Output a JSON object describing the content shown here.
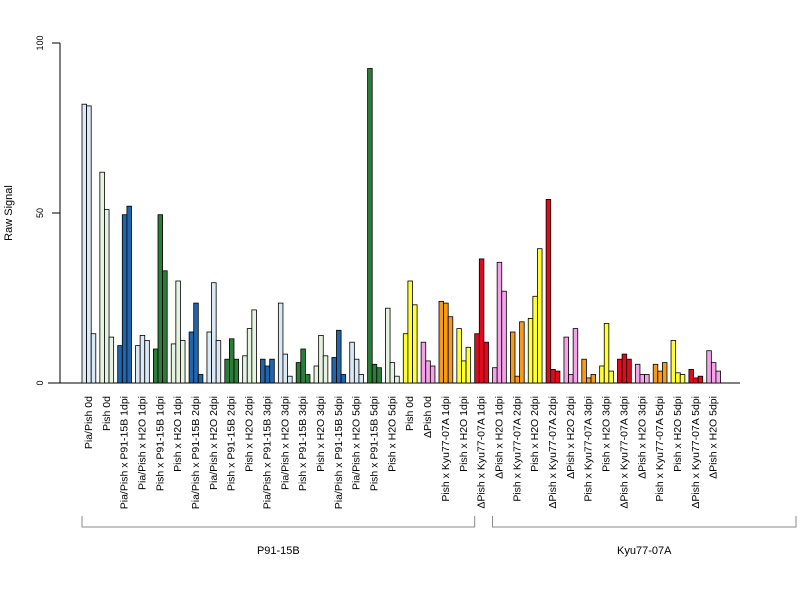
{
  "chart_data": {
    "type": "bar",
    "ylabel": "Raw Signal",
    "ylim": [
      0,
      100
    ],
    "yticks": [
      0,
      50,
      100
    ],
    "groups": [
      {
        "label": "P91-15B",
        "first": 0,
        "last": 22
      },
      {
        "label": "Kyu77-07A",
        "first": 23,
        "last": 40
      }
    ],
    "categories": [
      {
        "label": "Pia/Pish 0d",
        "color": "#dbe8f6",
        "values": [
          82,
          81.5,
          14.5
        ]
      },
      {
        "label": "Pish 0d",
        "color": "#e5f4e0",
        "values": [
          62,
          51,
          13.5
        ]
      },
      {
        "label": "Pia/Pish x P91-15B 1dpi",
        "color": "#2166ac",
        "values": [
          11,
          49.5,
          52
        ]
      },
      {
        "label": "Pia/Pish x H2O 1dpi",
        "color": "#dbe8f6",
        "values": [
          11,
          14,
          12.5
        ]
      },
      {
        "label": "Pish x P91-15B 1dpi",
        "color": "#2d7d3a",
        "values": [
          10,
          49.5,
          33
        ]
      },
      {
        "label": "Pish x H2O 1dpi",
        "color": "#e5f4e0",
        "values": [
          11.5,
          30,
          12.5
        ]
      },
      {
        "label": "Pia/Pish x P91-15B 2dpi",
        "color": "#2166ac",
        "values": [
          15,
          23.5,
          2.5
        ]
      },
      {
        "label": "Pia/Pish x H2O 2dpi",
        "color": "#dbe8f6",
        "values": [
          15,
          29.5,
          12.5
        ]
      },
      {
        "label": "Pish x P91-15B 2dpi",
        "color": "#2d7d3a",
        "values": [
          7,
          13,
          7
        ]
      },
      {
        "label": "Pish x H2O 2dpi",
        "color": "#e5f4e0",
        "values": [
          8,
          16,
          21.5
        ]
      },
      {
        "label": "Pia/Pish x P91-15B 3dpi",
        "color": "#2166ac",
        "values": [
          7,
          5,
          7
        ]
      },
      {
        "label": "Pia/Pish x H2O 3dpi",
        "color": "#dbe8f6",
        "values": [
          23.5,
          8.5,
          2
        ]
      },
      {
        "label": "Pish x P91-15B 3dpi",
        "color": "#2d7d3a",
        "values": [
          6,
          10,
          2.5
        ]
      },
      {
        "label": "Pish x H2O 3dpi",
        "color": "#e5f4e0",
        "values": [
          5,
          14,
          8
        ]
      },
      {
        "label": "Pia/Pish x P91-15B 5dpi",
        "color": "#2166ac",
        "values": [
          7.5,
          15.5,
          2.5
        ]
      },
      {
        "label": "Pia/Pish x H2O 5dpi",
        "color": "#dbe8f6",
        "values": [
          12,
          7,
          2.5
        ]
      },
      {
        "label": "Pish x P91-15B 5dpi",
        "color": "#2d7d3a",
        "values": [
          92.5,
          5.5,
          4.5
        ]
      },
      {
        "label": "Pish x H2O 5dpi",
        "color": "#e5f4e0",
        "values": [
          22,
          6,
          2
        ]
      },
      {
        "label": "Pish 0d",
        "color": "#ffff33",
        "values": [
          14.5,
          30,
          23
        ]
      },
      {
        "label": "ΔPish 0d",
        "color": "#f5a3e8",
        "values": [
          12,
          6.5,
          5
        ]
      },
      {
        "label": "Pish x Kyu77-07A 1dpi",
        "color": "#f39a1f",
        "values": [
          24,
          23.5,
          19.5
        ]
      },
      {
        "label": "Pish x H2O 1dpi",
        "color": "#ffff33",
        "values": [
          16,
          6.5,
          10.5
        ]
      },
      {
        "label": "ΔPish x Kyu77-07A 1dpi",
        "color": "#e00a1f",
        "values": [
          14.5,
          36.5,
          12
        ]
      },
      {
        "label": "ΔPish x H2O 1dpi",
        "color": "#f5a3e8",
        "values": [
          4.5,
          35.5,
          27
        ]
      },
      {
        "label": "Pish x Kyu77-07A 2dpi",
        "color": "#f39a1f",
        "values": [
          15,
          2,
          18
        ]
      },
      {
        "label": "Pish x H2O 2dpi",
        "color": "#ffff33",
        "values": [
          19,
          25.5,
          39.5
        ]
      },
      {
        "label": "ΔPish x Kyu77-07A 2dpi",
        "color": "#e00a1f",
        "values": [
          54,
          4,
          3.5
        ]
      },
      {
        "label": "ΔPish x H2O 2dpi",
        "color": "#f5a3e8",
        "values": [
          13.5,
          2.5,
          16
        ]
      },
      {
        "label": "Pish x Kyu77-07A 3dpi",
        "color": "#f39a1f",
        "values": [
          7,
          1.5,
          2.5
        ]
      },
      {
        "label": "Pish x H2O 3dpi",
        "color": "#ffff33",
        "values": [
          5,
          17.5,
          3.5
        ]
      },
      {
        "label": "ΔPish x Kyu77-07A 3dpi",
        "color": "#e00a1f",
        "values": [
          7,
          8.5,
          7
        ]
      },
      {
        "label": "ΔPish x H2O 3dpi",
        "color": "#f5a3e8",
        "values": [
          5.5,
          2.5,
          2.5
        ]
      },
      {
        "label": "Pish x Kyu77-07A 5dpi",
        "color": "#f39a1f",
        "values": [
          5.5,
          3.5,
          6
        ]
      },
      {
        "label": "Pish x H2O 5dpi",
        "color": "#ffff33",
        "values": [
          12.5,
          3,
          2.5
        ]
      },
      {
        "label": "ΔPish x Kyu77-07A 5dpi",
        "color": "#e00a1f",
        "values": [
          4,
          1.5,
          2
        ]
      },
      {
        "label": "ΔPish x H2O 5dpi",
        "color": "#f5a3e8",
        "values": [
          9.5,
          6,
          3.5
        ]
      }
    ]
  }
}
